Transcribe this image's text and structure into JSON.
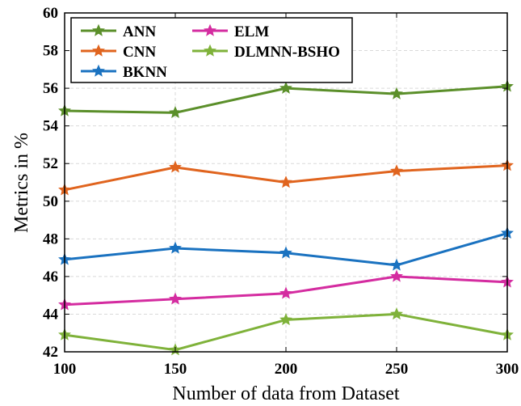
{
  "chart_data": {
    "type": "line",
    "title": "",
    "xlabel": "Number of data from Dataset",
    "ylabel": "Metrics in %",
    "x": [
      100,
      150,
      200,
      250,
      300
    ],
    "xlim": [
      100,
      300
    ],
    "ylim": [
      42,
      60
    ],
    "xticks": [
      100,
      150,
      200,
      250,
      300
    ],
    "yticks": [
      42,
      44,
      46,
      48,
      50,
      52,
      54,
      56,
      58,
      60
    ],
    "grid": true,
    "legend_position": "top-left",
    "series": [
      {
        "name": "ANN",
        "color": "#5b8f2a",
        "values": [
          54.8,
          54.7,
          56.0,
          55.7,
          56.1
        ]
      },
      {
        "name": "CNN",
        "color": "#e0641e",
        "values": [
          50.6,
          51.8,
          51.0,
          51.6,
          51.9
        ]
      },
      {
        "name": "BKNN",
        "color": "#1a72c0",
        "values": [
          46.9,
          47.5,
          47.25,
          46.6,
          48.3
        ]
      },
      {
        "name": "ELM",
        "color": "#d42ca0",
        "values": [
          44.5,
          44.8,
          45.1,
          46.0,
          45.7
        ]
      },
      {
        "name": "DLMNN-BSHO",
        "color": "#7fb23a",
        "values": [
          42.9,
          42.1,
          43.7,
          44.0,
          42.9
        ]
      }
    ]
  }
}
